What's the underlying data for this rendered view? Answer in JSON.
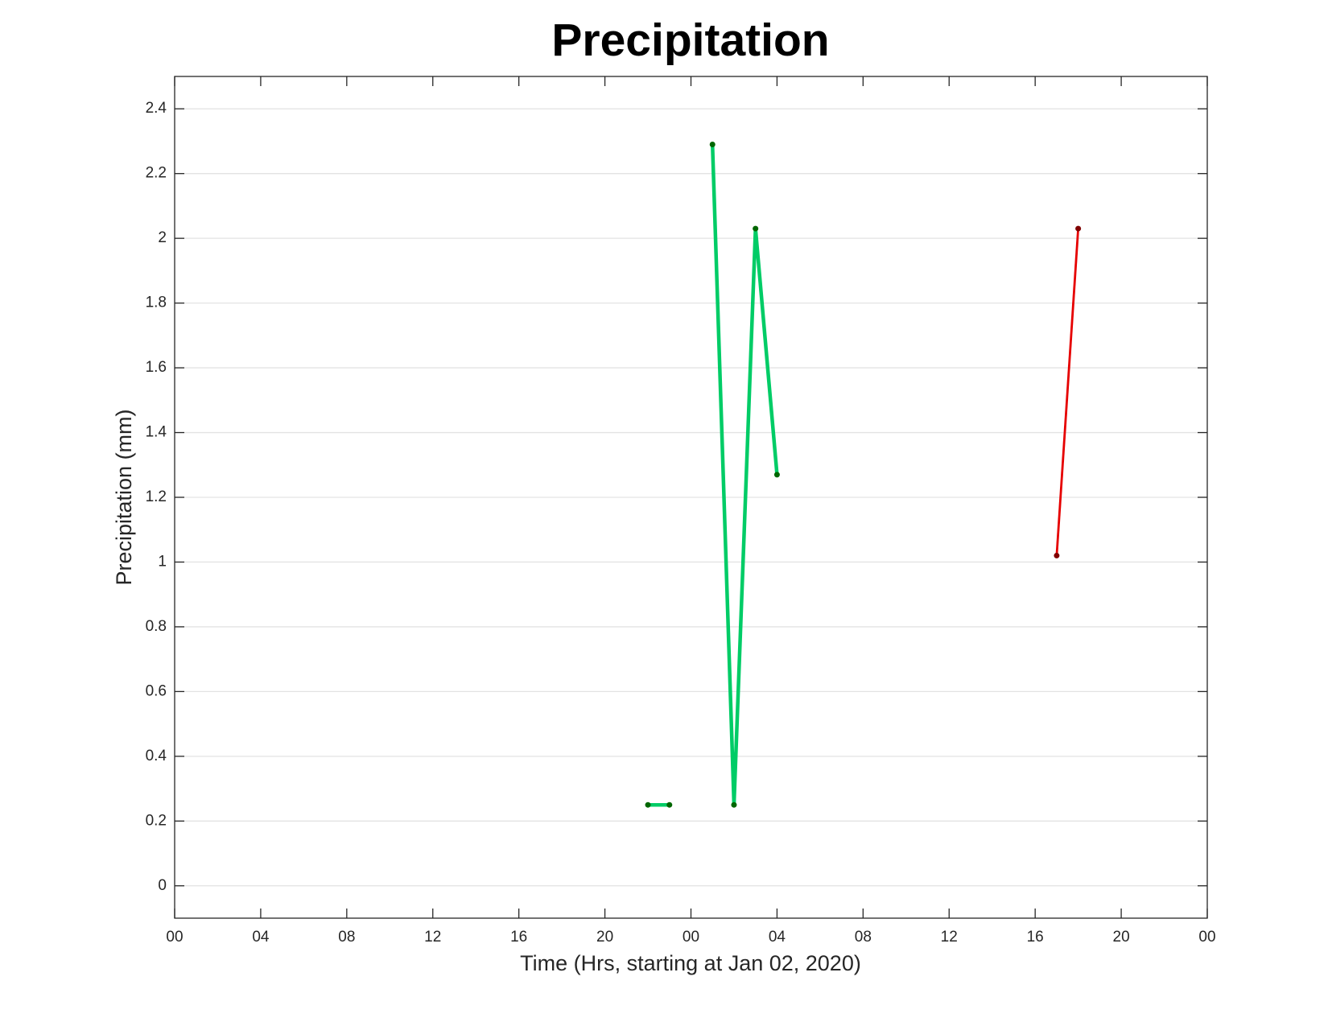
{
  "chart_data": {
    "type": "line",
    "title": "Precipitation",
    "xlabel": "Time (Hrs, starting at Jan 02, 2020)",
    "ylabel": "Precipitation (mm)",
    "x": [
      22,
      23,
      24,
      25,
      26,
      27,
      28,
      29,
      30,
      31,
      32,
      33,
      34,
      35,
      36,
      37,
      38,
      39,
      40,
      41,
      42
    ],
    "series": [
      {
        "color": "#00cc66",
        "marker_color": "#006600",
        "line_width": 4.5,
        "values": [
          0.25,
          0.25,
          null,
          2.29,
          0.25,
          2.03,
          1.27,
          null,
          null,
          null,
          null,
          null,
          null,
          null,
          null,
          null,
          null,
          null,
          null,
          null,
          null
        ]
      },
      {
        "color": "#e60000",
        "marker_color": "#800000",
        "line_width": 2.8,
        "values": [
          null,
          null,
          null,
          null,
          null,
          null,
          null,
          null,
          null,
          null,
          null,
          null,
          null,
          null,
          null,
          null,
          null,
          null,
          null,
          1.02,
          2.03
        ]
      }
    ],
    "xlim": [
      0,
      48
    ],
    "xticks": [
      {
        "value": 0,
        "label": "00"
      },
      {
        "value": 4,
        "label": "04"
      },
      {
        "value": 8,
        "label": "08"
      },
      {
        "value": 12,
        "label": "12"
      },
      {
        "value": 16,
        "label": "16"
      },
      {
        "value": 20,
        "label": "20"
      },
      {
        "value": 24,
        "label": "00"
      },
      {
        "value": 28,
        "label": "04"
      },
      {
        "value": 32,
        "label": "08"
      },
      {
        "value": 36,
        "label": "12"
      },
      {
        "value": 40,
        "label": "16"
      },
      {
        "value": 44,
        "label": "20"
      },
      {
        "value": 48,
        "label": "00"
      }
    ],
    "ylim": [
      -0.1,
      2.5
    ],
    "yticks": [
      0,
      0.2,
      0.4,
      0.6,
      0.8,
      1,
      1.2,
      1.4,
      1.6,
      1.8,
      2,
      2.2,
      2.4
    ],
    "grid": "y"
  }
}
